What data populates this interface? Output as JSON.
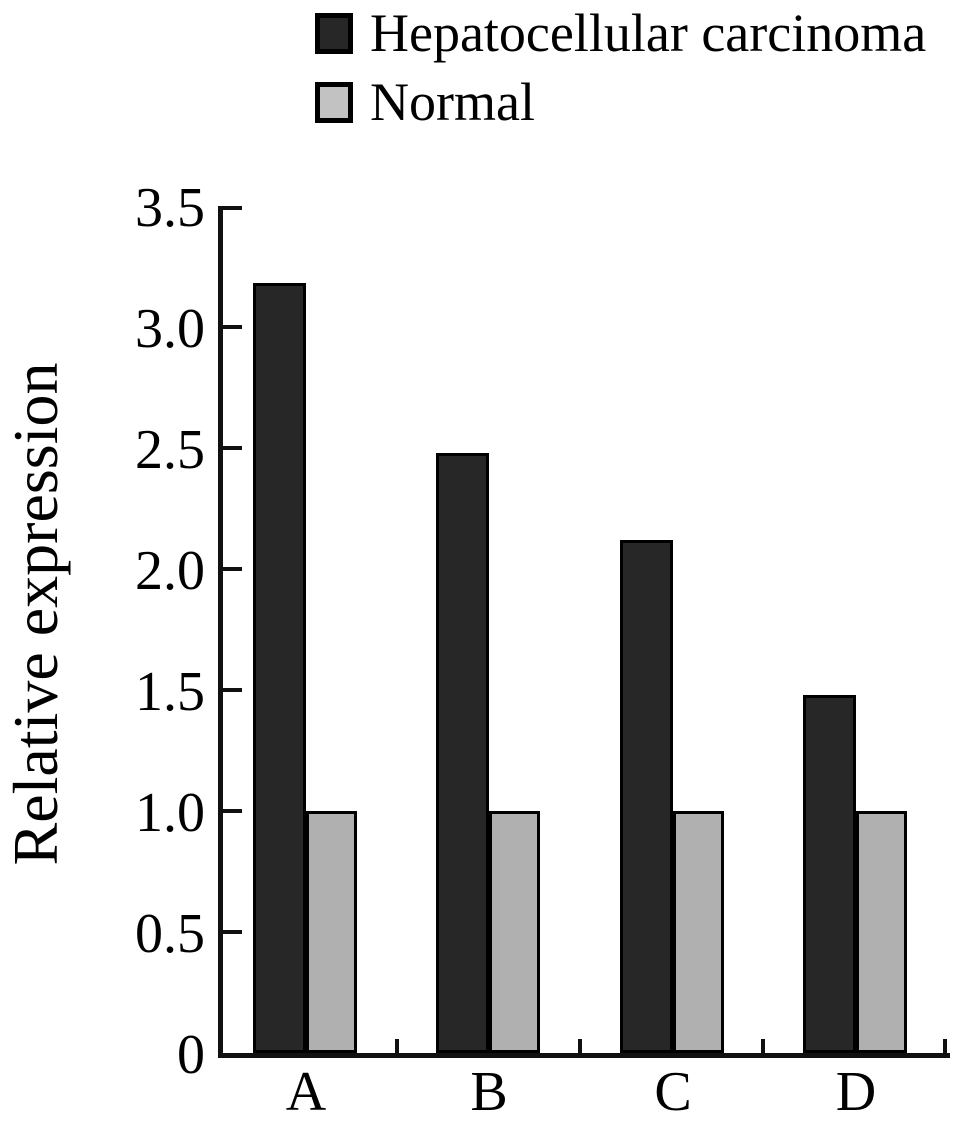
{
  "legend": {
    "items": [
      {
        "label": "Hepatocellular carcinoma",
        "color": "#272727",
        "border_color": "#000000"
      },
      {
        "label": "Normal",
        "color": "#c2c2c2",
        "border_color": "#000000"
      }
    ]
  },
  "chart_data": {
    "type": "bar",
    "title": "",
    "xlabel": "",
    "ylabel": "Relative expression",
    "categories": [
      "A",
      "B",
      "C",
      "D"
    ],
    "series": [
      {
        "name": "Hepatocellular carcinoma",
        "color": "#272727",
        "values": [
          3.18,
          2.48,
          2.12,
          1.48
        ]
      },
      {
        "name": "Normal",
        "color": "#b0b0b0",
        "values": [
          1.0,
          1.0,
          1.0,
          1.0
        ]
      }
    ],
    "ylim": [
      0,
      3.5
    ],
    "yticks": [
      0,
      0.5,
      1.0,
      1.5,
      2.0,
      2.5,
      3.0,
      3.5
    ],
    "ytick_labels": [
      "0",
      "0.5",
      "1.0",
      "1.5",
      "2.0",
      "2.5",
      "3.0",
      "3.5"
    ],
    "grid": false,
    "legend_position": "top-left",
    "bar_border_color": "#000000",
    "axis_color": "#111111"
  }
}
